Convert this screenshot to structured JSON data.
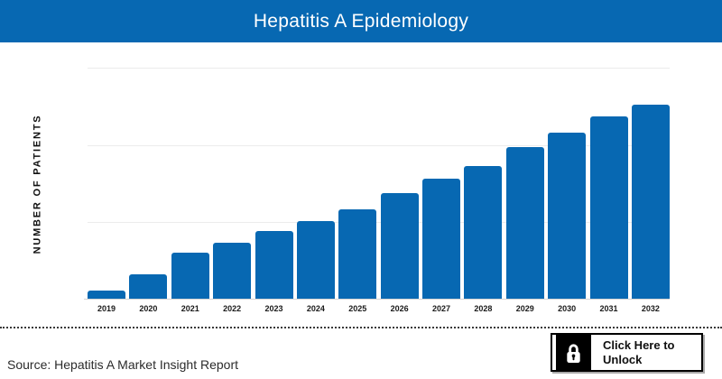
{
  "header": {
    "title": "Hepatitis A Epidemiology"
  },
  "colors": {
    "accent_blue": "#0768b2",
    "grid_gray": "#ececec",
    "text_dark": "#1a1a1a"
  },
  "chart_data": {
    "type": "bar",
    "title": "Hepatitis A Epidemiology",
    "ylabel": "NUMBER OF PATIENTS",
    "xlabel": "",
    "categories": [
      "2019",
      "2020",
      "2021",
      "2022",
      "2023",
      "2024",
      "2025",
      "2026",
      "2027",
      "2028",
      "2029",
      "2030",
      "2031",
      "2032"
    ],
    "values": [
      0.12,
      0.33,
      0.61,
      0.74,
      0.89,
      1.02,
      1.17,
      1.38,
      1.56,
      1.73,
      1.97,
      2.16,
      2.37,
      2.52
    ],
    "ylim": [
      0,
      3
    ],
    "y_tick_labels": [],
    "grid": "horizontal",
    "legend": "none",
    "bar_color": "#0768b2"
  },
  "footer": {
    "source_label": "Source: Hepatitis A Market Insight Report",
    "unlock_button": {
      "label_line1": "Click Here to",
      "label_line2": "Unlock",
      "icon": "lock-icon"
    }
  }
}
